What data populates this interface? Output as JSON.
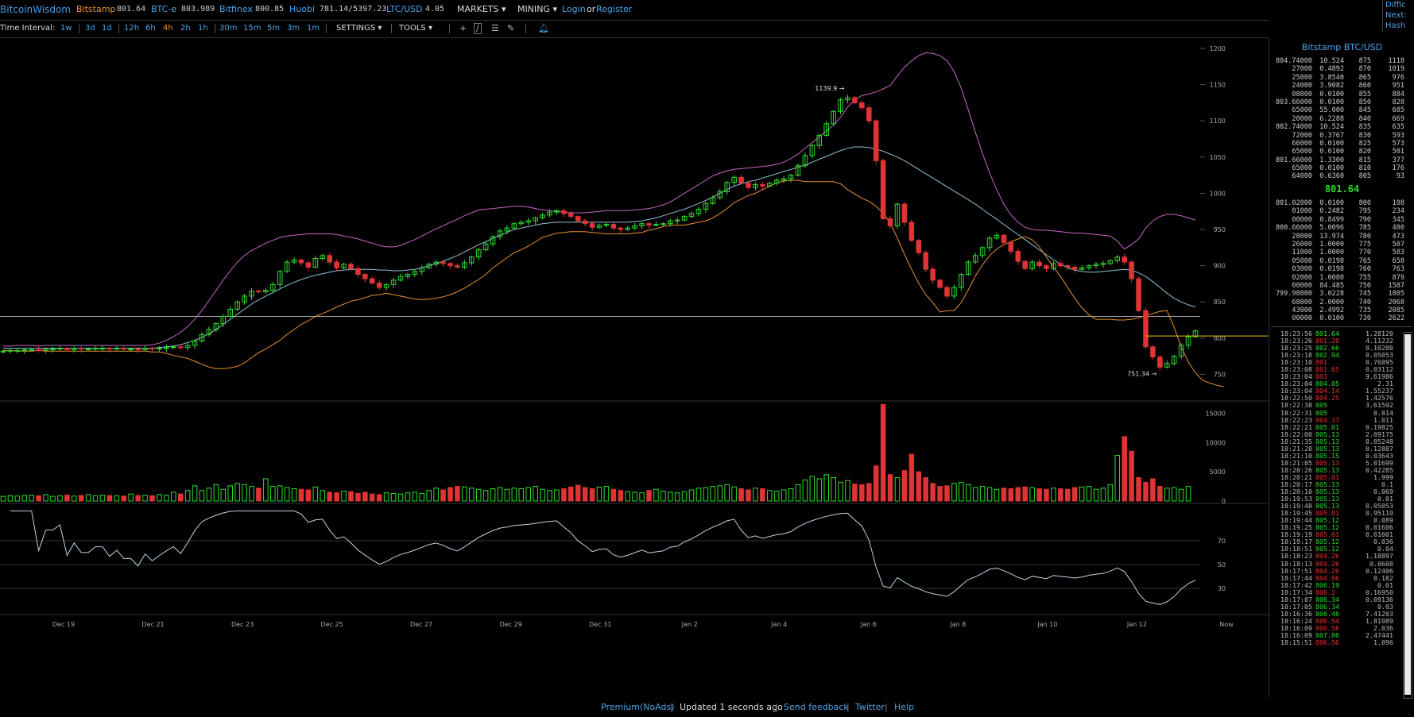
{
  "header": {
    "logo": "BitcoinWisdom",
    "markets": [
      {
        "name": "Bitstamp",
        "price": "801.64",
        "active": true
      },
      {
        "name": "BTC-e",
        "price": "803.989"
      },
      {
        "name": "Bitfinex",
        "price": "800.85"
      },
      {
        "name": "Huobi",
        "price": "781.14/5397.23"
      },
      {
        "name": "LTC/USD",
        "price": "4.05"
      }
    ],
    "menus": {
      "markets": "MARKETS",
      "mining": "MINING"
    },
    "login": "Login",
    "or": "or",
    "register": "Register",
    "corner": [
      "Diffic",
      "Next:",
      "Hash"
    ]
  },
  "toolbar": {
    "label": "Time Interval:",
    "intervals": [
      "1w",
      "3d",
      "1d",
      "12h",
      "6h",
      "4h",
      "2h",
      "1h",
      "30m",
      "15m",
      "5m",
      "3m",
      "1m"
    ],
    "active_interval": "4h",
    "settings": "SETTINGS",
    "tools": "TOOLS",
    "tool_icons": [
      "crosshair-icon",
      "line-tool-icon",
      "menu-lines-icon",
      "pen-tool-icon",
      "alert-bell-icon"
    ]
  },
  "colors": {
    "up": "#2ddb2d",
    "down": "#e03434",
    "accent": "#4aa3e6",
    "active": "#e8902e",
    "bb_upper": "#c565c5",
    "bb_mid": "#8fc0d6",
    "bb_lower": "#e8902e",
    "hline": "#ddd",
    "price_line": "#e6c21c"
  },
  "chart_data": {
    "type": "candlestick",
    "pair": "Bitstamp BTC/USD",
    "interval": "4h",
    "x_labels": [
      "Dec 19",
      "Dec 21",
      "Dec 23",
      "Dec 25",
      "Dec 27",
      "Dec 29",
      "Dec 31",
      "Jan 2",
      "Jan 4",
      "Jan 6",
      "Jan 8",
      "Jan 10",
      "Jan 12",
      "Now"
    ],
    "price_ticks": [
      1200,
      1150,
      1100,
      1050,
      1000,
      950,
      900,
      850,
      800,
      750
    ],
    "price_ylim": [
      722,
      1212
    ],
    "high_annotation": "1139.9",
    "low_annotation": "751.34",
    "horizontal_line": 830,
    "last_price_line": 803,
    "volume_ticks": [
      15000,
      10000,
      5000,
      0
    ],
    "volume_ylim": [
      0,
      16000
    ],
    "rsi_ticks": [
      70,
      50,
      30
    ],
    "rsi_ylim": [
      10,
      100
    ],
    "closes": [
      782,
      783,
      783,
      784,
      784,
      783,
      785,
      785,
      786,
      784,
      786,
      785,
      785,
      786,
      786,
      785,
      786,
      785,
      785,
      784,
      786,
      785,
      786,
      787,
      788,
      787,
      790,
      796,
      805,
      812,
      820,
      830,
      840,
      850,
      858,
      865,
      864,
      866,
      874,
      892,
      905,
      908,
      904,
      898,
      910,
      914,
      905,
      897,
      902,
      896,
      888,
      882,
      876,
      870,
      874,
      880,
      885,
      888,
      892,
      897,
      902,
      905,
      903,
      900,
      898,
      904,
      912,
      922,
      930,
      940,
      948,
      952,
      958,
      960,
      962,
      966,
      970,
      974,
      976,
      972,
      968,
      962,
      958,
      953,
      956,
      957,
      952,
      950,
      952,
      955,
      958,
      956,
      957,
      958,
      962,
      963,
      968,
      972,
      978,
      986,
      994,
      1002,
      1015,
      1022,
      1014,
      1008,
      1012,
      1010,
      1014,
      1018,
      1020,
      1025,
      1038,
      1052,
      1066,
      1080,
      1096,
      1113,
      1129,
      1132,
      1125,
      1118,
      1100,
      1045,
      965,
      955,
      985,
      960,
      935,
      918,
      895,
      880,
      870,
      858,
      870,
      888,
      905,
      914,
      925,
      938,
      942,
      932,
      920,
      906,
      896,
      905,
      900,
      896,
      903,
      900,
      898,
      895,
      897,
      900,
      902,
      903,
      907,
      912,
      905,
      882,
      838,
      788,
      774,
      760,
      765,
      775,
      790,
      802,
      810
    ],
    "volumes": [
      800,
      900,
      850,
      950,
      1000,
      900,
      1100,
      800,
      900,
      1000,
      850,
      950,
      1100,
      900,
      1000,
      950,
      900,
      850,
      1200,
      950,
      1000,
      900,
      1100,
      1000,
      1500,
      1200,
      1800,
      2600,
      1800,
      2200,
      2800,
      2000,
      2600,
      3000,
      2800,
      2500,
      2200,
      3800,
      2500,
      2600,
      2300,
      2100,
      2000,
      1900,
      2400,
      1800,
      1500,
      1400,
      1700,
      1600,
      1300,
      1500,
      1200,
      1100,
      1400,
      1300,
      1200,
      1400,
      1500,
      1300,
      1800,
      2200,
      1900,
      2300,
      2500,
      2400,
      2200,
      2000,
      1800,
      2100,
      2300,
      2000,
      2200,
      2100,
      2300,
      2500,
      2000,
      1800,
      1900,
      2100,
      2400,
      2700,
      2300,
      2100,
      2400,
      2500,
      2000,
      1800,
      1600,
      1500,
      1400,
      1800,
      2000,
      1700,
      1500,
      1400,
      1600,
      1900,
      2200,
      2300,
      2500,
      2600,
      2800,
      2400,
      2100,
      1900,
      2200,
      2100,
      1800,
      1700,
      1900,
      2100,
      2800,
      3600,
      4200,
      3800,
      4500,
      4000,
      3200,
      3500,
      2900,
      2800,
      3000,
      6000,
      16500,
      4500,
      4000,
      5200,
      8000,
      5000,
      4000,
      3000,
      2500,
      2600,
      3000,
      3200,
      2800,
      2300,
      2500,
      2300,
      2000,
      2200,
      2100,
      2300,
      2400,
      2300,
      2100,
      2000,
      2200,
      2100,
      2000,
      2300,
      2400,
      2500,
      2000,
      2200,
      2800,
      7800,
      11000,
      8500,
      4000,
      3200,
      3800,
      2500,
      2200,
      2300,
      2000,
      2500
    ],
    "bb_upper": [
      789,
      789,
      790,
      790,
      790,
      789,
      790,
      790,
      790,
      790,
      790,
      790,
      790,
      790,
      790,
      790,
      790,
      790,
      790,
      790,
      790,
      791,
      793,
      797,
      802,
      808,
      816,
      826,
      838,
      852,
      866,
      880,
      893,
      905,
      914,
      921,
      926,
      931,
      935,
      939,
      941,
      942,
      943,
      944,
      944,
      944,
      944,
      943,
      941,
      939,
      937,
      934,
      931,
      928,
      926,
      926,
      928,
      932,
      936,
      941,
      946,
      951,
      955,
      960,
      964,
      969,
      973,
      977,
      978,
      979,
      980,
      981,
      982,
      982,
      981,
      979,
      977,
      976,
      975,
      974,
      973,
      973,
      973,
      974,
      975,
      976,
      976,
      976,
      976,
      977,
      978,
      979,
      981,
      984,
      988,
      994,
      1000,
      1006,
      1012,
      1018,
      1024,
      1028,
      1031,
      1033,
      1034,
      1035,
      1036,
      1037,
      1038,
      1040,
      1043,
      1048,
      1054,
      1062,
      1070,
      1078,
      1086,
      1094,
      1105,
      1119,
      1129,
      1135,
      1137,
      1140,
      1144,
      1149,
      1162,
      1174,
      1183,
      1190,
      1194,
      1193,
      1190,
      1183,
      1168,
      1145,
      1115,
      1084,
      1055,
      1028,
      1005,
      985,
      970,
      960,
      953,
      950,
      949,
      949,
      948,
      947,
      946,
      945,
      945,
      944,
      943,
      942,
      941,
      934,
      923,
      929,
      937,
      952,
      962,
      968,
      971,
      971,
      969,
      966,
      963
    ],
    "bb_mid": [
      786,
      786,
      786,
      786,
      786,
      786,
      786,
      786,
      786,
      786,
      786,
      786,
      786,
      786,
      786,
      786,
      786,
      786,
      786,
      786,
      786,
      786,
      787,
      788,
      789,
      791,
      794,
      797,
      801,
      806,
      812,
      819,
      826,
      833,
      840,
      847,
      853,
      858,
      863,
      868,
      873,
      877,
      881,
      884,
      887,
      889,
      891,
      893,
      894,
      895,
      895,
      895,
      895,
      894,
      894,
      893,
      893,
      894,
      895,
      897,
      900,
      903,
      906,
      910,
      914,
      919,
      924,
      929,
      933,
      938,
      942,
      946,
      950,
      952,
      954,
      956,
      958,
      959,
      960,
      960,
      960,
      960,
      960,
      960,
      960,
      960,
      960,
      960,
      960,
      961,
      962,
      964,
      966,
      969,
      972,
      975,
      978,
      982,
      986,
      990,
      995,
      1000,
      1005,
      1010,
      1013,
      1016,
      1018,
      1021,
      1024,
      1027,
      1030,
      1033,
      1036,
      1039,
      1043,
      1047,
      1051,
      1055,
      1059,
      1062,
      1064,
      1064,
      1063,
      1061,
      1058,
      1054,
      1050,
      1045,
      1039,
      1033,
      1027,
      1021,
      1015,
      1009,
      1003,
      997,
      991,
      985,
      978,
      971,
      964,
      957,
      950,
      943,
      936,
      929,
      922,
      915,
      908,
      902,
      897,
      894,
      892,
      891,
      891,
      892,
      893,
      894,
      895,
      894,
      890,
      885,
      878,
      870,
      862,
      855,
      850,
      846,
      843
    ],
    "bb_lower": [
      783,
      783,
      782,
      782,
      782,
      783,
      782,
      782,
      782,
      782,
      782,
      782,
      782,
      782,
      782,
      782,
      782,
      782,
      782,
      782,
      782,
      781,
      781,
      779,
      776,
      774,
      772,
      768,
      764,
      760,
      758,
      758,
      759,
      761,
      766,
      773,
      780,
      785,
      791,
      797,
      805,
      812,
      819,
      824,
      830,
      834,
      838,
      843,
      847,
      851,
      853,
      856,
      859,
      860,
      862,
      860,
      858,
      856,
      854,
      853,
      854,
      855,
      857,
      860,
      864,
      869,
      875,
      881,
      888,
      897,
      904,
      911,
      918,
      922,
      927,
      933,
      939,
      942,
      945,
      946,
      947,
      947,
      947,
      946,
      945,
      944,
      944,
      944,
      944,
      945,
      946,
      949,
      951,
      954,
      956,
      956,
      956,
      958,
      960,
      962,
      966,
      972,
      979,
      987,
      992,
      997,
      1000,
      1005,
      1010,
      1014,
      1017,
      1018,
      1018,
      1016,
      1016,
      1016,
      1016,
      1016,
      1013,
      1005,
      999,
      993,
      989,
      982,
      972,
      959,
      938,
      916,
      895,
      876,
      860,
      849,
      836,
      838,
      838,
      849,
      867,
      886,
      901,
      914,
      923,
      929,
      933,
      937,
      940,
      936,
      926,
      912,
      898,
      885,
      870,
      855,
      842,
      832,
      826,
      826,
      826,
      825,
      825,
      826,
      828,
      831,
      834,
      837,
      838,
      815,
      788,
      767,
      752,
      742,
      738,
      735,
      733
    ]
  },
  "sidebar": {
    "title": "Bitstamp BTC/USD",
    "asks": [
      [
        "804.74000",
        "10.524",
        "875",
        "1118"
      ],
      [
        "27000",
        "0.4892",
        "870",
        "1019"
      ],
      [
        "25000",
        "3.8540",
        "865",
        "976"
      ],
      [
        "24000",
        "3.9082",
        "860",
        "951"
      ],
      [
        "08000",
        "0.0100",
        "855",
        "884"
      ],
      [
        "803.66000",
        "0.0100",
        "850",
        "828"
      ],
      [
        "65000",
        "55.000",
        "845",
        "685"
      ],
      [
        "20000",
        "6.2288",
        "840",
        "669"
      ],
      [
        "802.74000",
        "10.524",
        "835",
        "635"
      ],
      [
        "72000",
        "0.3767",
        "830",
        "593"
      ],
      [
        "66000",
        "0.0100",
        "825",
        "573"
      ],
      [
        "65000",
        "0.0100",
        "820",
        "501"
      ],
      [
        "801.66000",
        "1.3300",
        "815",
        "377"
      ],
      [
        "65000",
        "0.0100",
        "810",
        "176"
      ],
      [
        "64000",
        "0.6360",
        "805",
        "93"
      ]
    ],
    "last_price": "801.64",
    "bids": [
      [
        "801.02000",
        "0.0100",
        "800",
        "108"
      ],
      [
        "01000",
        "0.2482",
        "795",
        "234"
      ],
      [
        "00000",
        "0.8499",
        "790",
        "345"
      ],
      [
        "800.66000",
        "5.0096",
        "785",
        "400"
      ],
      [
        "28000",
        "13.974",
        "780",
        "473"
      ],
      [
        "26000",
        "1.0000",
        "775",
        "507"
      ],
      [
        "11000",
        "1.0000",
        "770",
        "583"
      ],
      [
        "05000",
        "0.0198",
        "765",
        "658"
      ],
      [
        "03000",
        "0.0198",
        "760",
        "763"
      ],
      [
        "02000",
        "1.0080",
        "755",
        "879"
      ],
      [
        "00000",
        "84.485",
        "750",
        "1587"
      ],
      [
        "799.98000",
        "3.0228",
        "745",
        "1805"
      ],
      [
        "68000",
        "2.0000",
        "740",
        "2068"
      ],
      [
        "43000",
        "2.4992",
        "735",
        "2085"
      ],
      [
        "00000",
        "0.0100",
        "730",
        "2622"
      ]
    ],
    "trades": [
      [
        "18:23:56",
        "801.64",
        "up",
        "1.28120"
      ],
      [
        "18:23:26",
        "801.28",
        "dn",
        "4.11232"
      ],
      [
        "18:23:25",
        "802.66",
        "up",
        "0.10200"
      ],
      [
        "18:23:18",
        "802.94",
        "up",
        "0.05053"
      ],
      [
        "18:23:10",
        "801",
        "dn",
        "0.76095"
      ],
      [
        "18:23:08",
        "801.65",
        "dn",
        "0.03112"
      ],
      [
        "18:23:04",
        "803",
        "dn",
        "9.61986"
      ],
      [
        "18:23:04",
        "804.05",
        "up",
        "2.31"
      ],
      [
        "18:23:04",
        "804.14",
        "dn",
        "1.55237"
      ],
      [
        "18:22:50",
        "804.25",
        "dn",
        "1.42576"
      ],
      [
        "18:22:38",
        "805",
        "up",
        "3.61592"
      ],
      [
        "18:22:31",
        "805",
        "up",
        "0.014"
      ],
      [
        "18:22:23",
        "804.37",
        "dn",
        "1.011"
      ],
      [
        "18:22:21",
        "805.01",
        "up",
        "0.19825"
      ],
      [
        "18:22:00",
        "805.13",
        "up",
        "2.09175"
      ],
      [
        "18:21:35",
        "805.13",
        "up",
        "0.05248"
      ],
      [
        "18:21:28",
        "805.13",
        "up",
        "0.12887"
      ],
      [
        "18:21:10",
        "805.15",
        "up",
        "0.03643"
      ],
      [
        "18:21:05",
        "805.13",
        "dn",
        "5.01699"
      ],
      [
        "18:20:26",
        "805.13",
        "up",
        "0.42285"
      ],
      [
        "18:20:21",
        "805.01",
        "dn",
        "1.999"
      ],
      [
        "18:20:17",
        "805.13",
        "up",
        "0.1"
      ],
      [
        "18:20:10",
        "805.13",
        "up",
        "0.069"
      ],
      [
        "18:19:53",
        "805.13",
        "up",
        "0.01"
      ],
      [
        "18:19:48",
        "805.13",
        "up",
        "0.05053"
      ],
      [
        "18:19:45",
        "805.01",
        "dn",
        "0.95119"
      ],
      [
        "18:19:44",
        "805.12",
        "up",
        "0.089"
      ],
      [
        "18:19:25",
        "805.12",
        "up",
        "0.01606"
      ],
      [
        "18:19:19",
        "805.01",
        "dn",
        "0.01001"
      ],
      [
        "18:19:17",
        "805.12",
        "up",
        "0.036"
      ],
      [
        "18:18:51",
        "805.12",
        "up",
        "0.04"
      ],
      [
        "18:18:23",
        "804.26",
        "dn",
        "1.18897"
      ],
      [
        "18:18:13",
        "804.26",
        "dn",
        "0.0608"
      ],
      [
        "18:17:51",
        "804.26",
        "dn",
        "0.12406"
      ],
      [
        "18:17:44",
        "804.06",
        "dn",
        "0.182"
      ],
      [
        "18:17:42",
        "806.19",
        "up",
        "0.01"
      ],
      [
        "18:17:34",
        "806.2",
        "dn",
        "0.16950"
      ],
      [
        "18:17:07",
        "806.34",
        "up",
        "0.09136"
      ],
      [
        "18:17:05",
        "806.34",
        "up",
        "0.03"
      ],
      [
        "18:16:36",
        "806.46",
        "up",
        "7.41203"
      ],
      [
        "18:16:24",
        "806.54",
        "dn",
        "1.81989"
      ],
      [
        "18:16:09",
        "806.56",
        "dn",
        "2.036"
      ],
      [
        "18:16:09",
        "807.06",
        "up",
        "2.47441"
      ],
      [
        "18:15:51",
        "806.56",
        "dn",
        "1.096"
      ]
    ]
  },
  "footer": {
    "premium": "Premium(NoAds)",
    "updated": "Updated 1 seconds ago",
    "feedback": "Send feedback",
    "twitter": "Twitter",
    "help": "Help"
  }
}
